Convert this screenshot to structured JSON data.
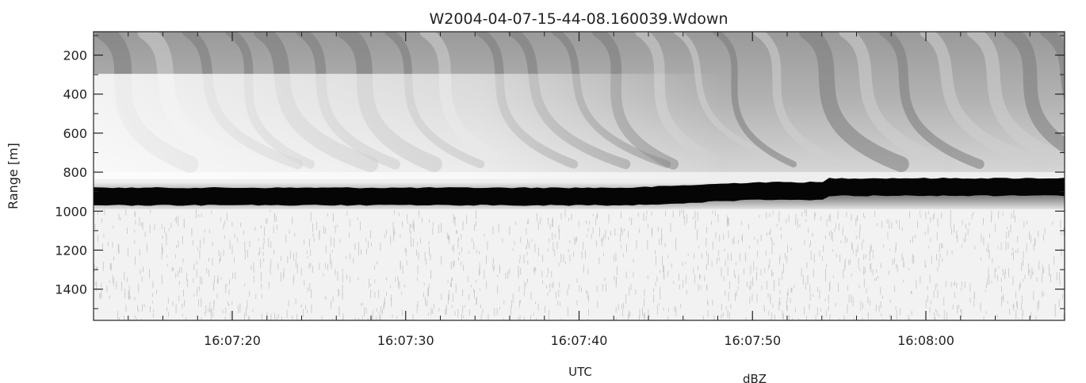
{
  "chart_data": {
    "type": "heatmap",
    "title": "W2004-04-07-15-44-08.160039.Wdown",
    "xlabel": "UTC",
    "ylabel": "Range [m]",
    "colorbar_label": "dBZ",
    "x_ticks": [
      "16:07:20",
      "16:07:30",
      "16:07:40",
      "16:07:50",
      "16:08:00"
    ],
    "y_ticks": [
      200,
      400,
      600,
      800,
      1000,
      1200,
      1400
    ],
    "xlim": [
      "16:07:12",
      "16:08:08"
    ],
    "ylim": [
      1560,
      80
    ],
    "y_reversed": true,
    "colormap": "grayscale",
    "colors": {
      "strong": "#050505",
      "medium": "#8a8a8a",
      "weak": "#f2f2f2",
      "axis": "#222222"
    },
    "layers": [
      {
        "name": "textured layer",
        "range_top": 80,
        "range_bottom": 800,
        "intensity": "medium"
      },
      {
        "name": "strong return band",
        "range_top": 880,
        "range_bottom": 970,
        "intensity": "strong"
      },
      {
        "name": "low-return region",
        "range_top": 990,
        "range_bottom": 1560,
        "intensity": "weak"
      }
    ]
  }
}
